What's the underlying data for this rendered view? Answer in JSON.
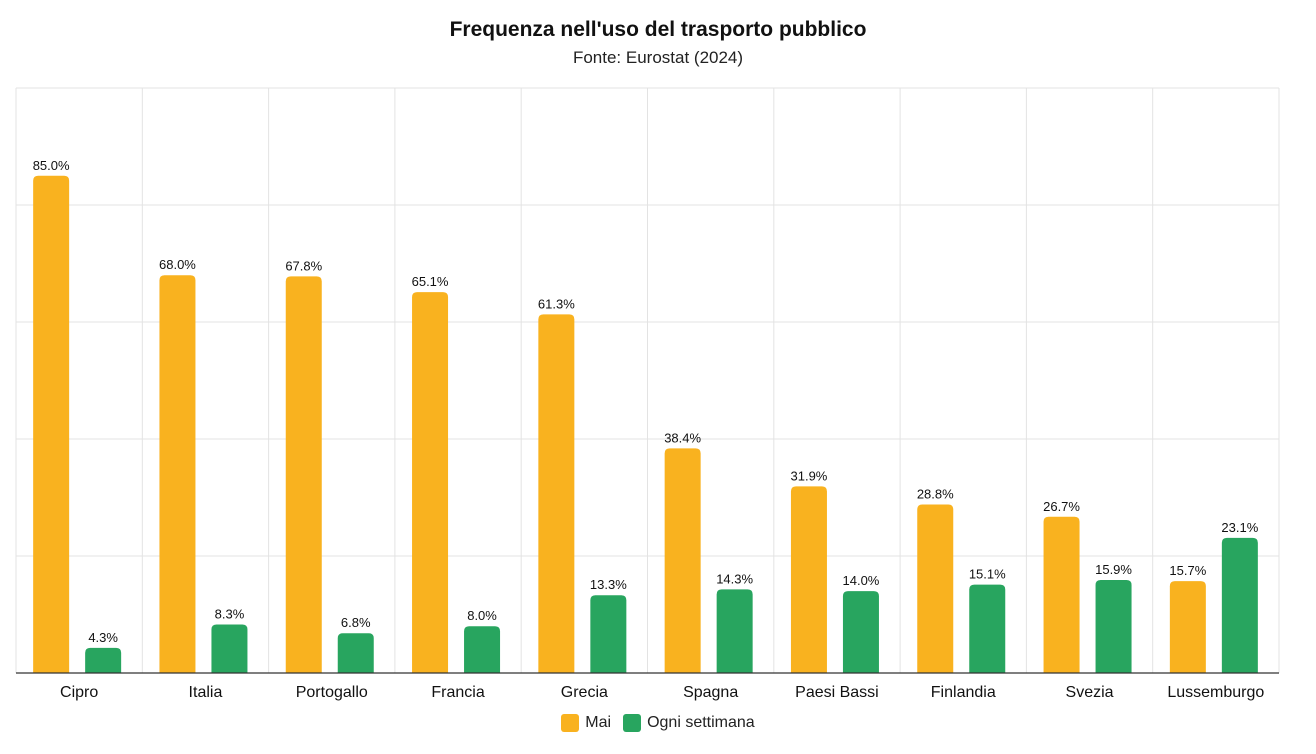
{
  "title": "Frequenza nell'uso del trasporto pubblico",
  "subtitle": "Fonte: Eurostat (2024)",
  "colors": {
    "series_mai": "#F9B21F",
    "series_settimana": "#28A55F",
    "grid": "#e3e3e3",
    "axis": "#333333"
  },
  "legend": {
    "mai": "Mai",
    "settimana": "Ogni settimana"
  },
  "chart_data": {
    "type": "bar",
    "title": "Frequenza nell'uso del trasporto pubblico",
    "subtitle": "Fonte: Eurostat (2024)",
    "categories": [
      "Cipro",
      "Italia",
      "Portogallo",
      "Francia",
      "Grecia",
      "Spagna",
      "Paesi Bassi",
      "Finlandia",
      "Svezia",
      "Lussemburgo"
    ],
    "series": [
      {
        "name": "Mai",
        "values": [
          85.0,
          68.0,
          67.8,
          65.1,
          61.3,
          38.4,
          31.9,
          28.8,
          26.7,
          15.7
        ]
      },
      {
        "name": "Ogni settimana",
        "values": [
          4.3,
          8.3,
          6.8,
          8.0,
          13.3,
          14.3,
          14.0,
          15.1,
          15.9,
          23.1
        ]
      }
    ],
    "value_suffix": "%",
    "ylim": [
      0,
      100
    ],
    "grid": true,
    "legend_position": "bottom-center",
    "xlabel": "",
    "ylabel": ""
  }
}
